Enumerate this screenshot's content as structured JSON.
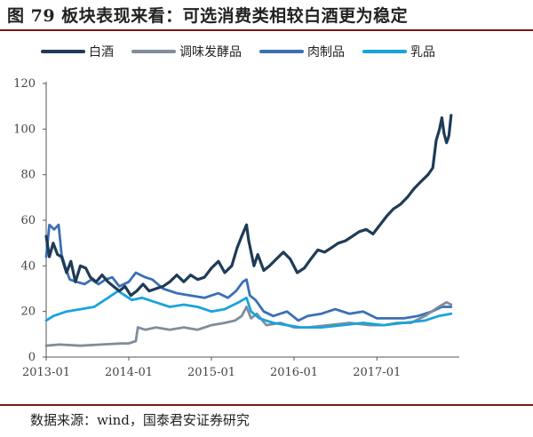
{
  "figure": {
    "title": "图 79 板块表现来看：可选消费类相较白酒更为稳定",
    "source": "数据来源：wind，国泰君安证券研究"
  },
  "chart_data": {
    "type": "line",
    "xlim": [
      "2013-01-01",
      "2017-12-31"
    ],
    "ylim": [
      0,
      120
    ],
    "yticks": [
      0,
      20,
      40,
      60,
      80,
      100,
      120
    ],
    "xticks": [
      "2013-01",
      "2014-01",
      "2015-01",
      "2016-01",
      "2017-01"
    ],
    "legend_position": "top",
    "grid": false,
    "series": [
      {
        "name": "白酒",
        "color": "#1f3b57",
        "width": 3.2,
        "points": [
          [
            "2013-01-01",
            53
          ],
          [
            "2013-01-15",
            44
          ],
          [
            "2013-02-01",
            50
          ],
          [
            "2013-02-20",
            45
          ],
          [
            "2013-03-10",
            44
          ],
          [
            "2013-04-01",
            37
          ],
          [
            "2013-04-20",
            42
          ],
          [
            "2013-05-10",
            33
          ],
          [
            "2013-06-01",
            40
          ],
          [
            "2013-06-25",
            39
          ],
          [
            "2013-07-15",
            35
          ],
          [
            "2013-08-10",
            33
          ],
          [
            "2013-09-05",
            36
          ],
          [
            "2013-10-01",
            33
          ],
          [
            "2013-10-25",
            31
          ],
          [
            "2013-11-20",
            29
          ],
          [
            "2013-12-15",
            31
          ],
          [
            "2014-01-10",
            27
          ],
          [
            "2014-02-05",
            29
          ],
          [
            "2014-03-05",
            32
          ],
          [
            "2014-04-01",
            29
          ],
          [
            "2014-05-01",
            30
          ],
          [
            "2014-06-01",
            31
          ],
          [
            "2014-07-01",
            33
          ],
          [
            "2014-08-01",
            36
          ],
          [
            "2014-09-01",
            33
          ],
          [
            "2014-10-01",
            36
          ],
          [
            "2014-11-01",
            34
          ],
          [
            "2014-12-01",
            35
          ],
          [
            "2015-01-01",
            39
          ],
          [
            "2015-02-01",
            42
          ],
          [
            "2015-03-01",
            37
          ],
          [
            "2015-04-01",
            40
          ],
          [
            "2015-04-25",
            48
          ],
          [
            "2015-05-15",
            53
          ],
          [
            "2015-06-05",
            58
          ],
          [
            "2015-06-15",
            51
          ],
          [
            "2015-07-08",
            40
          ],
          [
            "2015-07-25",
            45
          ],
          [
            "2015-08-20",
            38
          ],
          [
            "2015-09-15",
            40
          ],
          [
            "2015-10-15",
            43
          ],
          [
            "2015-11-15",
            46
          ],
          [
            "2015-12-15",
            43
          ],
          [
            "2016-01-15",
            37
          ],
          [
            "2016-02-15",
            39
          ],
          [
            "2016-03-15",
            43
          ],
          [
            "2016-04-15",
            47
          ],
          [
            "2016-05-15",
            46
          ],
          [
            "2016-06-15",
            48
          ],
          [
            "2016-07-15",
            50
          ],
          [
            "2016-08-15",
            51
          ],
          [
            "2016-09-15",
            53
          ],
          [
            "2016-10-15",
            55
          ],
          [
            "2016-11-15",
            56
          ],
          [
            "2016-12-15",
            54
          ],
          [
            "2017-01-15",
            58
          ],
          [
            "2017-02-15",
            62
          ],
          [
            "2017-03-15",
            65
          ],
          [
            "2017-04-15",
            67
          ],
          [
            "2017-05-15",
            70
          ],
          [
            "2017-06-15",
            74
          ],
          [
            "2017-07-15",
            77
          ],
          [
            "2017-08-15",
            80
          ],
          [
            "2017-09-05",
            83
          ],
          [
            "2017-09-20",
            95
          ],
          [
            "2017-10-05",
            100
          ],
          [
            "2017-10-15",
            105
          ],
          [
            "2017-10-25",
            98
          ],
          [
            "2017-11-05",
            94
          ],
          [
            "2017-11-15",
            97
          ],
          [
            "2017-11-25",
            106
          ]
        ]
      },
      {
        "name": "调味发酵品",
        "color": "#7f8d9c",
        "width": 2.8,
        "points": [
          [
            "2013-01-01",
            5
          ],
          [
            "2013-03-01",
            5.5
          ],
          [
            "2013-06-01",
            5
          ],
          [
            "2013-09-01",
            5.5
          ],
          [
            "2013-12-01",
            6
          ],
          [
            "2014-01-01",
            6
          ],
          [
            "2014-02-01",
            7
          ],
          [
            "2014-02-10",
            13
          ],
          [
            "2014-03-15",
            12
          ],
          [
            "2014-05-01",
            13
          ],
          [
            "2014-07-01",
            12
          ],
          [
            "2014-09-01",
            13
          ],
          [
            "2014-11-01",
            12
          ],
          [
            "2015-01-01",
            14
          ],
          [
            "2015-03-01",
            15
          ],
          [
            "2015-04-15",
            16
          ],
          [
            "2015-05-15",
            18
          ],
          [
            "2015-06-05",
            22
          ],
          [
            "2015-06-25",
            17
          ],
          [
            "2015-07-20",
            19
          ],
          [
            "2015-09-01",
            14
          ],
          [
            "2015-11-01",
            15
          ],
          [
            "2016-01-01",
            13
          ],
          [
            "2016-03-01",
            13
          ],
          [
            "2016-06-01",
            14
          ],
          [
            "2016-09-01",
            15
          ],
          [
            "2016-12-01",
            14
          ],
          [
            "2017-02-01",
            14
          ],
          [
            "2017-04-01",
            15
          ],
          [
            "2017-06-01",
            15
          ],
          [
            "2017-08-01",
            18
          ],
          [
            "2017-10-01",
            22
          ],
          [
            "2017-11-05",
            24
          ],
          [
            "2017-11-25",
            23
          ]
        ]
      },
      {
        "name": "肉制品",
        "color": "#3b6fb6",
        "width": 2.8,
        "points": [
          [
            "2013-01-01",
            44
          ],
          [
            "2013-01-15",
            58
          ],
          [
            "2013-02-05",
            56
          ],
          [
            "2013-02-25",
            58
          ],
          [
            "2013-03-10",
            45
          ],
          [
            "2013-03-25",
            40
          ],
          [
            "2013-04-15",
            34
          ],
          [
            "2013-05-15",
            33
          ],
          [
            "2013-06-20",
            32
          ],
          [
            "2013-07-20",
            34
          ],
          [
            "2013-08-20",
            32
          ],
          [
            "2013-09-20",
            34
          ],
          [
            "2013-10-20",
            35
          ],
          [
            "2013-11-20",
            31
          ],
          [
            "2014-01-01",
            33
          ],
          [
            "2014-02-01",
            37
          ],
          [
            "2014-03-15",
            35
          ],
          [
            "2014-04-15",
            34
          ],
          [
            "2014-06-01",
            30
          ],
          [
            "2014-08-01",
            28
          ],
          [
            "2014-10-01",
            27
          ],
          [
            "2014-12-01",
            26
          ],
          [
            "2015-02-01",
            28
          ],
          [
            "2015-03-15",
            26
          ],
          [
            "2015-04-20",
            29
          ],
          [
            "2015-05-20",
            33
          ],
          [
            "2015-06-05",
            34
          ],
          [
            "2015-06-20",
            27
          ],
          [
            "2015-07-15",
            25
          ],
          [
            "2015-08-20",
            20
          ],
          [
            "2015-10-01",
            18
          ],
          [
            "2015-12-01",
            20
          ],
          [
            "2016-01-20",
            16
          ],
          [
            "2016-03-01",
            18
          ],
          [
            "2016-05-01",
            19
          ],
          [
            "2016-07-01",
            21
          ],
          [
            "2016-09-01",
            19
          ],
          [
            "2016-11-01",
            20
          ],
          [
            "2017-01-01",
            17
          ],
          [
            "2017-03-01",
            17
          ],
          [
            "2017-05-01",
            17
          ],
          [
            "2017-07-01",
            18
          ],
          [
            "2017-09-01",
            20
          ],
          [
            "2017-10-15",
            22
          ],
          [
            "2017-11-25",
            22
          ]
        ]
      },
      {
        "name": "乳品",
        "color": "#1aa3dc",
        "width": 2.8,
        "points": [
          [
            "2013-01-01",
            16
          ],
          [
            "2013-02-01",
            18
          ],
          [
            "2013-04-01",
            20
          ],
          [
            "2013-06-01",
            21
          ],
          [
            "2013-08-01",
            22
          ],
          [
            "2013-10-01",
            26
          ],
          [
            "2013-11-15",
            29
          ],
          [
            "2013-12-15",
            27
          ],
          [
            "2014-01-15",
            25
          ],
          [
            "2014-03-01",
            26
          ],
          [
            "2014-05-01",
            24
          ],
          [
            "2014-07-01",
            22
          ],
          [
            "2014-09-01",
            23
          ],
          [
            "2014-11-01",
            22
          ],
          [
            "2015-01-01",
            20
          ],
          [
            "2015-03-01",
            21
          ],
          [
            "2015-05-01",
            24
          ],
          [
            "2015-06-05",
            26
          ],
          [
            "2015-06-25",
            20
          ],
          [
            "2015-08-01",
            17
          ],
          [
            "2015-10-01",
            15
          ],
          [
            "2015-12-01",
            14
          ],
          [
            "2016-02-01",
            13
          ],
          [
            "2016-05-01",
            13
          ],
          [
            "2016-08-01",
            14
          ],
          [
            "2016-11-01",
            15
          ],
          [
            "2017-02-01",
            14
          ],
          [
            "2017-05-01",
            15
          ],
          [
            "2017-08-01",
            16
          ],
          [
            "2017-10-01",
            18
          ],
          [
            "2017-11-25",
            19
          ]
        ]
      }
    ]
  }
}
